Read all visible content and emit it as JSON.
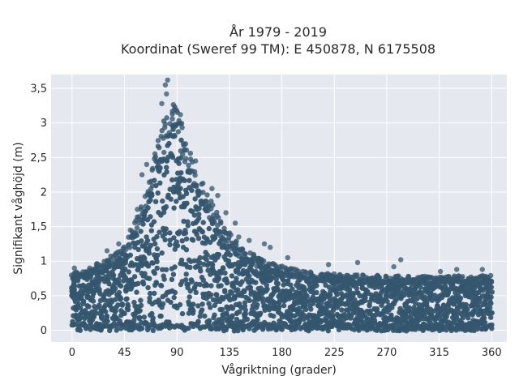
{
  "chart_data": {
    "type": "scatter",
    "title_line1": "År 1979 - 2019",
    "title_line2": "Koordinat (Sweref 99 TM): E 450878, N 6175508",
    "xlabel": "Vågriktning (grader)",
    "ylabel": "Signifikant våghöjd (m)",
    "xlim": [
      -18,
      373
    ],
    "ylim": [
      -0.17,
      3.7
    ],
    "xticks": [
      0,
      45,
      90,
      135,
      180,
      225,
      270,
      315,
      360
    ],
    "yticks": [
      0,
      0.5,
      1,
      1.5,
      2,
      2.5,
      3,
      3.5
    ],
    "ytick_labels": [
      "0",
      "0,5",
      "1",
      "1,5",
      "2",
      "2,5",
      "3",
      "3,5"
    ],
    "grid": true,
    "marker_color": "#34566e",
    "plot_background": "#e5e8ef",
    "envelope": [
      {
        "x": 0,
        "y": 0.85
      },
      {
        "x": 20,
        "y": 0.95
      },
      {
        "x": 45,
        "y": 1.2
      },
      {
        "x": 60,
        "y": 1.8
      },
      {
        "x": 75,
        "y": 2.8
      },
      {
        "x": 83,
        "y": 3.3
      },
      {
        "x": 90,
        "y": 3.25
      },
      {
        "x": 100,
        "y": 2.6
      },
      {
        "x": 115,
        "y": 2.0
      },
      {
        "x": 130,
        "y": 1.5
      },
      {
        "x": 145,
        "y": 1.2
      },
      {
        "x": 165,
        "y": 1.0
      },
      {
        "x": 200,
        "y": 0.85
      },
      {
        "x": 250,
        "y": 0.8
      },
      {
        "x": 300,
        "y": 0.78
      },
      {
        "x": 360,
        "y": 0.8
      }
    ],
    "outliers": [
      {
        "x": 82,
        "y": 3.62
      },
      {
        "x": 80,
        "y": 3.55
      },
      {
        "x": 81,
        "y": 3.42
      },
      {
        "x": 77,
        "y": 3.28
      },
      {
        "x": 88,
        "y": 3.2
      },
      {
        "x": 93,
        "y": 3.12
      },
      {
        "x": 64,
        "y": 2.4
      },
      {
        "x": 106,
        "y": 2.45
      },
      {
        "x": 60,
        "y": 2.25
      },
      {
        "x": 120,
        "y": 2.05
      },
      {
        "x": 125,
        "y": 1.95
      },
      {
        "x": 132,
        "y": 1.7
      },
      {
        "x": 140,
        "y": 1.55
      },
      {
        "x": 143,
        "y": 1.35
      },
      {
        "x": 152,
        "y": 1.3
      },
      {
        "x": 165,
        "y": 1.25
      },
      {
        "x": 170,
        "y": 1.2
      },
      {
        "x": 185,
        "y": 1.05
      },
      {
        "x": 220,
        "y": 0.95
      },
      {
        "x": 245,
        "y": 0.98
      },
      {
        "x": 282,
        "y": 1.02
      },
      {
        "x": 276,
        "y": 0.92
      },
      {
        "x": 316,
        "y": 0.85
      },
      {
        "x": 330,
        "y": 0.88
      },
      {
        "x": 352,
        "y": 0.88
      },
      {
        "x": 56,
        "y": 1.75
      },
      {
        "x": 50,
        "y": 1.45
      },
      {
        "x": 40,
        "y": 1.25
      },
      {
        "x": 30,
        "y": 1.15
      },
      {
        "x": 2,
        "y": 0.9
      }
    ]
  }
}
